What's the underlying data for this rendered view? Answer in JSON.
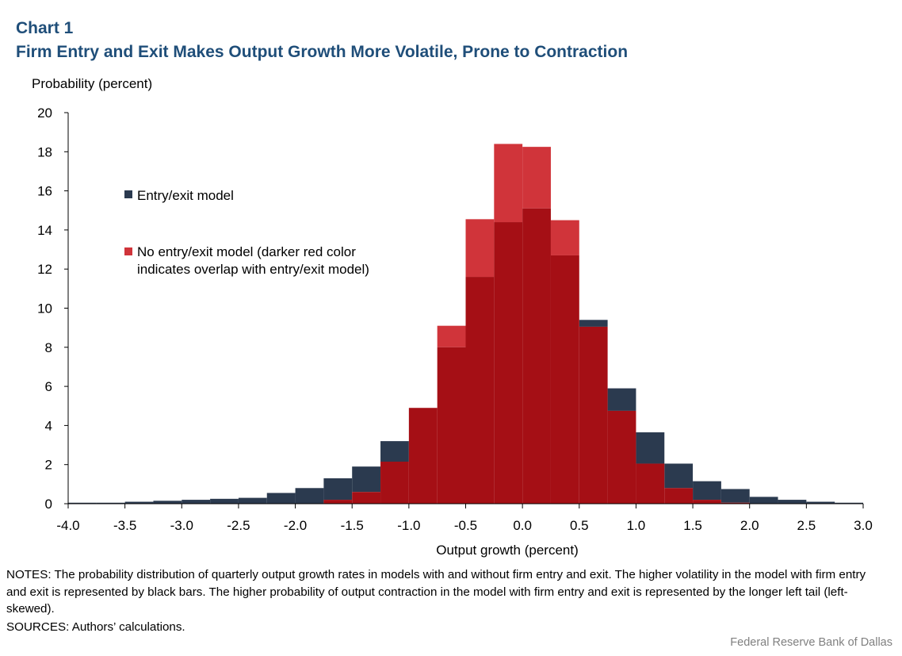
{
  "header": {
    "chart_number": "Chart 1",
    "title": "Firm Entry and Exit Makes Output Growth More Volatile, Prone to Contraction"
  },
  "colors": {
    "entry_exit": "#2b3a4f",
    "no_entry_exit": "#d0343a",
    "overlap": "#a50f15",
    "title_blue": "#1f4e79"
  },
  "chart_data": {
    "type": "bar",
    "title": "Firm Entry and Exit Makes Output Growth More Volatile, Prone to Contraction",
    "ylabel": "Probability (percent)",
    "xlabel": "Output growth (percent)",
    "ylim": [
      0,
      20
    ],
    "xlim": [
      -4.0,
      3.0
    ],
    "bin_width": 0.25,
    "y_ticks": [
      "0",
      "2",
      "4",
      "6",
      "8",
      "10",
      "12",
      "14",
      "16",
      "18",
      "20"
    ],
    "x_ticks": [
      "-4.0",
      "-3.5",
      "-3.0",
      "-2.5",
      "-2.0",
      "-1.5",
      "-1.0",
      "-0.5",
      "0.0",
      "0.5",
      "1.0",
      "1.5",
      "2.0",
      "2.5",
      "3.0"
    ],
    "bin_starts": [
      -4.0,
      -3.75,
      -3.5,
      -3.25,
      -3.0,
      -2.75,
      -2.5,
      -2.25,
      -2.0,
      -1.75,
      -1.5,
      -1.25,
      -1.0,
      -0.75,
      -0.5,
      -0.25,
      0.0,
      0.25,
      0.5,
      0.75,
      1.0,
      1.25,
      1.5,
      1.75,
      2.0,
      2.25,
      2.5,
      2.75
    ],
    "series": [
      {
        "name": "Entry/exit model",
        "values": [
          0.05,
          0.05,
          0.1,
          0.15,
          0.2,
          0.25,
          0.3,
          0.55,
          0.8,
          1.3,
          1.9,
          3.2,
          4.9,
          8.0,
          11.6,
          14.4,
          15.1,
          12.7,
          9.4,
          5.9,
          3.65,
          2.05,
          1.15,
          0.75,
          0.35,
          0.2,
          0.1,
          0.05
        ]
      },
      {
        "name": "No entry/exit model (darker red color indicates overlap with entry/exit model)",
        "values": [
          0,
          0,
          0,
          0,
          0,
          0,
          0,
          0,
          0,
          0.2,
          0.6,
          2.15,
          4.9,
          9.1,
          14.55,
          18.4,
          18.25,
          14.5,
          9.05,
          4.75,
          2.05,
          0.8,
          0.2,
          0.05,
          0,
          0,
          0,
          0
        ]
      }
    ],
    "legend": {
      "position": "upper-left",
      "entries": [
        {
          "label": "Entry/exit model"
        },
        {
          "label": "No entry/exit model (darker red color",
          "label_line2": "indicates overlap with entry/exit model)"
        }
      ]
    }
  },
  "footer": {
    "notes": "NOTES: The probability distribution of quarterly output growth rates in models with and without firm entry and exit. The higher volatility in the model with firm entry and exit is represented by black bars. The higher probability of output contraction in the model with firm entry and exit is represented by the longer left tail (left-skewed).",
    "sources": "SOURCES: Authors’ calculations.",
    "credit": "Federal Reserve  Bank of Dallas"
  }
}
